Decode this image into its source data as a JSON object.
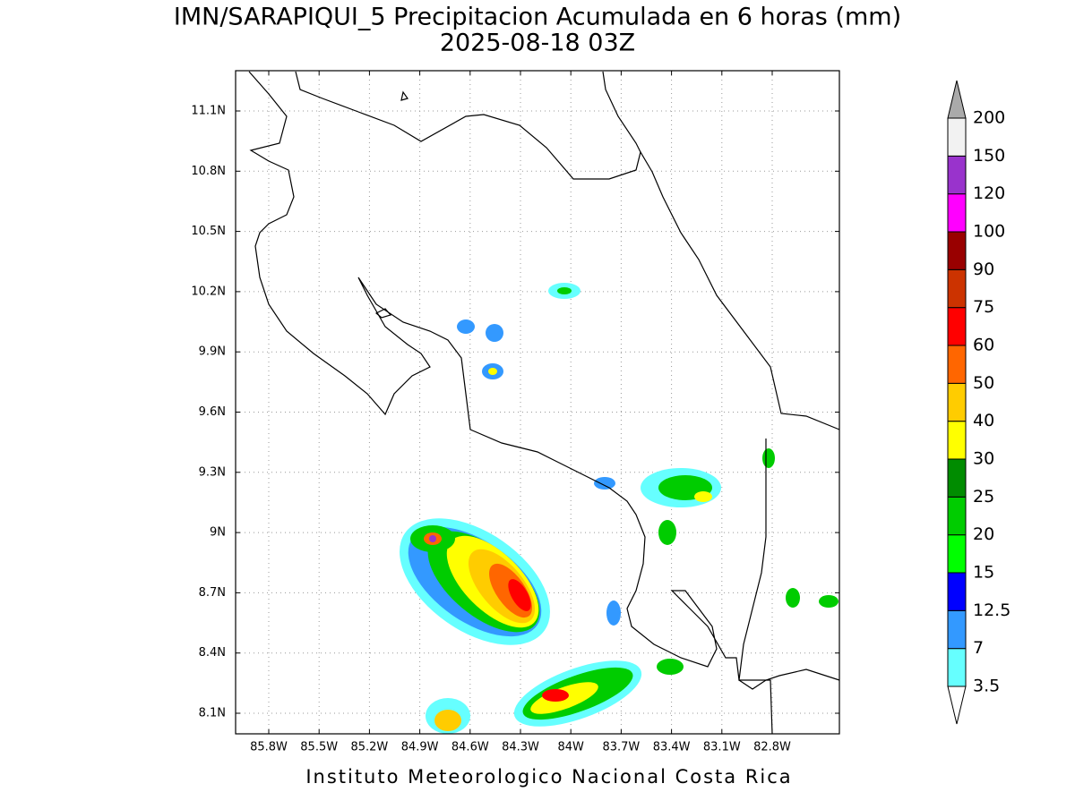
{
  "title": "IMN/SARAPIQUI_5 Precipitacion Acumulada en 6 horas (mm)",
  "subtitle": "2025-08-18 03Z",
  "footer": "Instituto Meteorologico Nacional Costa Rica",
  "map": {
    "lon_labels": [
      "85.8W",
      "85.5W",
      "85.2W",
      "84.9W",
      "84.6W",
      "84.3W",
      "84W",
      "83.7W",
      "83.4W",
      "83.1W",
      "82.8W"
    ],
    "lat_labels": [
      "11.1N",
      "10.8N",
      "10.5N",
      "10.2N",
      "9.9N",
      "9.6N",
      "9.3N",
      "9N",
      "8.7N",
      "8.4N",
      "8.1N"
    ],
    "grid": true
  },
  "colorbar": {
    "levels": [
      3.5,
      7,
      12.5,
      15,
      20,
      25,
      30,
      40,
      50,
      60,
      75,
      90,
      100,
      120,
      150,
      200
    ],
    "colors": [
      "#66ffff",
      "#3399ff",
      "#0000ff",
      "#00ff00",
      "#00cc00",
      "#008c00",
      "#ffff00",
      "#ffcc00",
      "#ff6600",
      "#ff0000",
      "#cc3300",
      "#990000",
      "#ff00ff",
      "#9933cc",
      "#f2f2f2"
    ],
    "under_color": "#ffffff",
    "over_color": "#aaaaaa"
  }
}
